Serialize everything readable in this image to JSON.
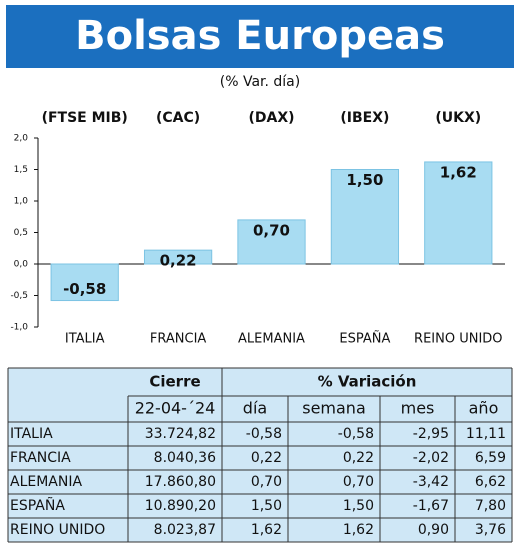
{
  "chart_data": {
    "type": "bar",
    "title": "Bolsas Europeas",
    "subtitle": "(% Var. día)",
    "index_labels": [
      "(FTSE MIB)",
      "(CAC)",
      "(DAX)",
      "(IBEX)",
      "(UKX)"
    ],
    "categories": [
      "ITALIA",
      "FRANCIA",
      "ALEMANIA",
      "ESPAÑA",
      "REINO UNIDO"
    ],
    "values": [
      -0.58,
      0.22,
      0.7,
      1.5,
      1.62
    ],
    "value_labels": [
      "-0,58",
      "0,22",
      "0,70",
      "1,50",
      "1,62"
    ],
    "color": "#a8dcf2",
    "ylim": [
      -1,
      2
    ],
    "yticks": [
      {
        "value": -1,
        "label": "-1,0"
      },
      {
        "value": -0.5,
        "label": "-0,5"
      },
      {
        "value": 0,
        "label": "0,0"
      },
      {
        "value": 0.5,
        "label": "0,5"
      },
      {
        "value": 1,
        "label": "1,0"
      },
      {
        "value": 1.5,
        "label": "1,5"
      },
      {
        "value": 2,
        "label": "2,0"
      }
    ]
  },
  "table": {
    "header": [
      "Cierre",
      "% Variación"
    ],
    "subheader": [
      "22-04-´24",
      "día",
      "semana",
      "mes",
      "año"
    ],
    "rows": [
      [
        "ITALIA",
        "33.724,82",
        "-0,58",
        "-0,58",
        "-2,95",
        "11,11"
      ],
      [
        "FRANCIA",
        "8.040,36",
        "0,22",
        "0,22",
        "-2,02",
        "6,59"
      ],
      [
        "ALEMANIA",
        "17.860,80",
        "0,70",
        "0,70",
        "-3,42",
        "6,62"
      ],
      [
        "ESPAÑA",
        "10.890,20",
        "1,50",
        "1,50",
        "-1,67",
        "7,80"
      ],
      [
        "REINO UNIDO",
        "8.023,87",
        "1,62",
        "1,62",
        "0,90",
        "3,76"
      ]
    ]
  }
}
